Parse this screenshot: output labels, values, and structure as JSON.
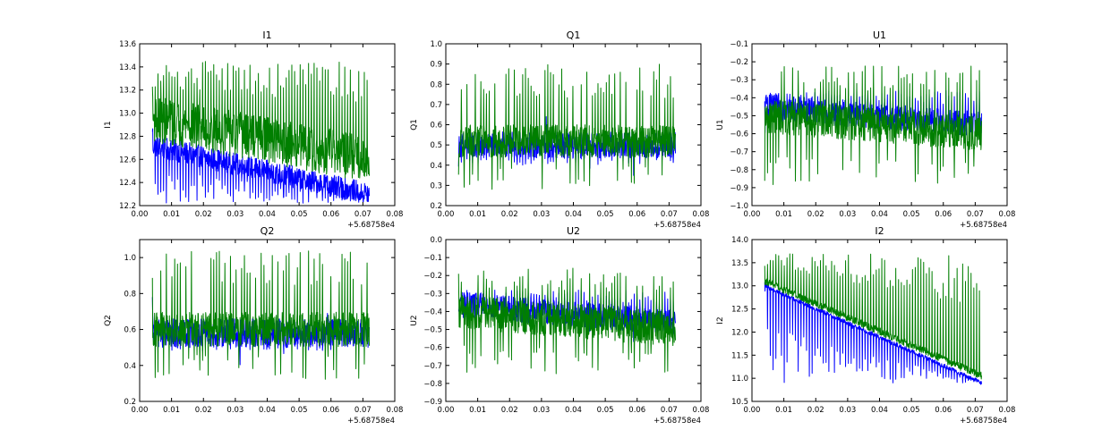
{
  "figure": {
    "background": "#ffffff"
  },
  "chart_data": [
    {
      "type": "line",
      "title": "I1",
      "xlabel": "",
      "ylabel": "I1",
      "xlim": [
        0.0,
        0.08
      ],
      "ylim": [
        12.2,
        13.6
      ],
      "x_ticks": [
        0.0,
        0.01,
        0.02,
        0.03,
        0.04,
        0.05,
        0.06,
        0.07,
        0.08
      ],
      "x_tick_labels": [
        "0.00",
        "0.01",
        "0.02",
        "0.03",
        "0.04",
        "0.05",
        "0.06",
        "0.07",
        "0.08"
      ],
      "y_ticks": [
        12.2,
        12.4,
        12.6,
        12.8,
        13.0,
        13.2,
        13.4,
        13.6
      ],
      "y_tick_labels": [
        "12.2",
        "12.4",
        "12.6",
        "12.8",
        "13.0",
        "13.2",
        "13.4",
        "13.6"
      ],
      "x_offset_label": "+5.68758e4",
      "x_range_data": [
        0.004,
        0.072
      ],
      "series": [
        {
          "name": "blue",
          "color": "#0000ff",
          "start": 12.72,
          "end": 12.3,
          "spread": 0.12,
          "spike_dir": "down",
          "spike_to": 12.22
        },
        {
          "name": "green",
          "color": "#007f00",
          "start": 12.95,
          "end": 12.6,
          "spread": 0.25,
          "spike_dir": "up",
          "spike_to": 13.45
        }
      ]
    },
    {
      "type": "line",
      "title": "Q1",
      "xlabel": "",
      "ylabel": "Q1",
      "xlim": [
        0.0,
        0.08
      ],
      "ylim": [
        0.2,
        1.0
      ],
      "x_ticks": [
        0.0,
        0.01,
        0.02,
        0.03,
        0.04,
        0.05,
        0.06,
        0.07,
        0.08
      ],
      "x_tick_labels": [
        "0.00",
        "0.01",
        "0.02",
        "0.03",
        "0.04",
        "0.05",
        "0.06",
        "0.07",
        "0.08"
      ],
      "y_ticks": [
        0.2,
        0.3,
        0.4,
        0.5,
        0.6,
        0.7,
        0.8,
        0.9,
        1.0
      ],
      "y_tick_labels": [
        "0.2",
        "0.3",
        "0.4",
        "0.5",
        "0.6",
        "0.7",
        "0.8",
        "0.9",
        "1.0"
      ],
      "x_offset_label": "+5.68758e4",
      "x_range_data": [
        0.004,
        0.072
      ],
      "series": [
        {
          "name": "blue",
          "color": "#0000ff",
          "start": 0.5,
          "end": 0.5,
          "spread": 0.08,
          "spike_dir": "down",
          "spike_to": 0.4
        },
        {
          "name": "green",
          "color": "#007f00",
          "start": 0.52,
          "end": 0.52,
          "spread": 0.1,
          "spike_dir": "both",
          "spike_to": 0.9,
          "spike_low": 0.28
        }
      ]
    },
    {
      "type": "line",
      "title": "U1",
      "xlabel": "",
      "ylabel": "U1",
      "xlim": [
        0.0,
        0.08
      ],
      "ylim": [
        -1.0,
        -0.1
      ],
      "x_ticks": [
        0.0,
        0.01,
        0.02,
        0.03,
        0.04,
        0.05,
        0.06,
        0.07,
        0.08
      ],
      "x_tick_labels": [
        "0.00",
        "0.01",
        "0.02",
        "0.03",
        "0.04",
        "0.05",
        "0.06",
        "0.07",
        "0.08"
      ],
      "y_ticks": [
        -1.0,
        -0.9,
        -0.8,
        -0.7,
        -0.6,
        -0.5,
        -0.4,
        -0.3,
        -0.2,
        -0.1
      ],
      "y_tick_labels": [
        "−1.0",
        "−0.9",
        "−0.8",
        "−0.7",
        "−0.6",
        "−0.5",
        "−0.4",
        "−0.3",
        "−0.2",
        "−0.1"
      ],
      "x_offset_label": "+5.68758e4",
      "x_range_data": [
        0.004,
        0.072
      ],
      "series": [
        {
          "name": "blue",
          "color": "#0000ff",
          "start": -0.45,
          "end": -0.55,
          "spread": 0.09,
          "spike_dir": "up",
          "spike_to": -0.36
        },
        {
          "name": "green",
          "color": "#007f00",
          "start": -0.5,
          "end": -0.6,
          "spread": 0.12,
          "spike_dir": "both",
          "spike_to": -0.22,
          "spike_low": -0.9
        }
      ]
    },
    {
      "type": "line",
      "title": "Q2",
      "xlabel": "",
      "ylabel": "Q2",
      "xlim": [
        0.0,
        0.08
      ],
      "ylim": [
        0.2,
        1.1
      ],
      "x_ticks": [
        0.0,
        0.01,
        0.02,
        0.03,
        0.04,
        0.05,
        0.06,
        0.07,
        0.08
      ],
      "x_tick_labels": [
        "0.00",
        "0.01",
        "0.02",
        "0.03",
        "0.04",
        "0.05",
        "0.06",
        "0.07",
        "0.08"
      ],
      "y_ticks": [
        0.2,
        0.4,
        0.6,
        0.8,
        1.0
      ],
      "y_tick_labels": [
        "0.2",
        "0.4",
        "0.6",
        "0.8",
        "1.0"
      ],
      "x_offset_label": "+5.68758e4",
      "x_range_data": [
        0.004,
        0.072
      ],
      "series": [
        {
          "name": "blue",
          "color": "#0000ff",
          "start": 0.58,
          "end": 0.58,
          "spread": 0.1,
          "spike_dir": "down",
          "spike_to": 0.48
        },
        {
          "name": "green",
          "color": "#007f00",
          "start": 0.6,
          "end": 0.6,
          "spread": 0.12,
          "spike_dir": "both",
          "spike_to": 1.04,
          "spike_low": 0.32
        }
      ]
    },
    {
      "type": "line",
      "title": "U2",
      "xlabel": "",
      "ylabel": "U2",
      "xlim": [
        0.0,
        0.08
      ],
      "ylim": [
        -0.9,
        0.0
      ],
      "x_ticks": [
        0.0,
        0.01,
        0.02,
        0.03,
        0.04,
        0.05,
        0.06,
        0.07,
        0.08
      ],
      "x_tick_labels": [
        "0.00",
        "0.01",
        "0.02",
        "0.03",
        "0.04",
        "0.05",
        "0.06",
        "0.07",
        "0.08"
      ],
      "y_ticks": [
        -0.9,
        -0.8,
        -0.7,
        -0.6,
        -0.5,
        -0.4,
        -0.3,
        -0.2,
        -0.1,
        0.0
      ],
      "y_tick_labels": [
        "−0.9",
        "−0.8",
        "−0.7",
        "−0.6",
        "−0.5",
        "−0.4",
        "−0.3",
        "−0.2",
        "−0.1",
        "0.0"
      ],
      "x_offset_label": "+5.68758e4",
      "x_range_data": [
        0.004,
        0.072
      ],
      "series": [
        {
          "name": "blue",
          "color": "#0000ff",
          "start": -0.36,
          "end": -0.46,
          "spread": 0.09,
          "spike_dir": "up",
          "spike_to": -0.28
        },
        {
          "name": "green",
          "color": "#007f00",
          "start": -0.4,
          "end": -0.5,
          "spread": 0.12,
          "spike_dir": "both",
          "spike_to": -0.15,
          "spike_low": -0.75
        }
      ]
    },
    {
      "type": "line",
      "title": "I2",
      "xlabel": "",
      "ylabel": "I2",
      "xlim": [
        0.0,
        0.08
      ],
      "ylim": [
        10.5,
        14.0
      ],
      "x_ticks": [
        0.0,
        0.01,
        0.02,
        0.03,
        0.04,
        0.05,
        0.06,
        0.07,
        0.08
      ],
      "x_tick_labels": [
        "0.00",
        "0.01",
        "0.02",
        "0.03",
        "0.04",
        "0.05",
        "0.06",
        "0.07",
        "0.08"
      ],
      "y_ticks": [
        10.5,
        11.0,
        11.5,
        12.0,
        12.5,
        13.0,
        13.5,
        14.0
      ],
      "y_tick_labels": [
        "10.5",
        "11.0",
        "11.5",
        "12.0",
        "12.5",
        "13.0",
        "13.5",
        "14.0"
      ],
      "x_offset_label": "+5.68758e4",
      "x_range_data": [
        0.004,
        0.072
      ],
      "series": [
        {
          "name": "blue",
          "color": "#0000ff",
          "start": 13.0,
          "end": 10.9,
          "spread": 0.06,
          "spike_dir": "down",
          "spike_to": 10.9
        },
        {
          "name": "green",
          "color": "#007f00",
          "start": 13.1,
          "end": 11.05,
          "spread": 0.1,
          "spike_dir": "up",
          "spike_to": 13.7
        }
      ]
    }
  ]
}
